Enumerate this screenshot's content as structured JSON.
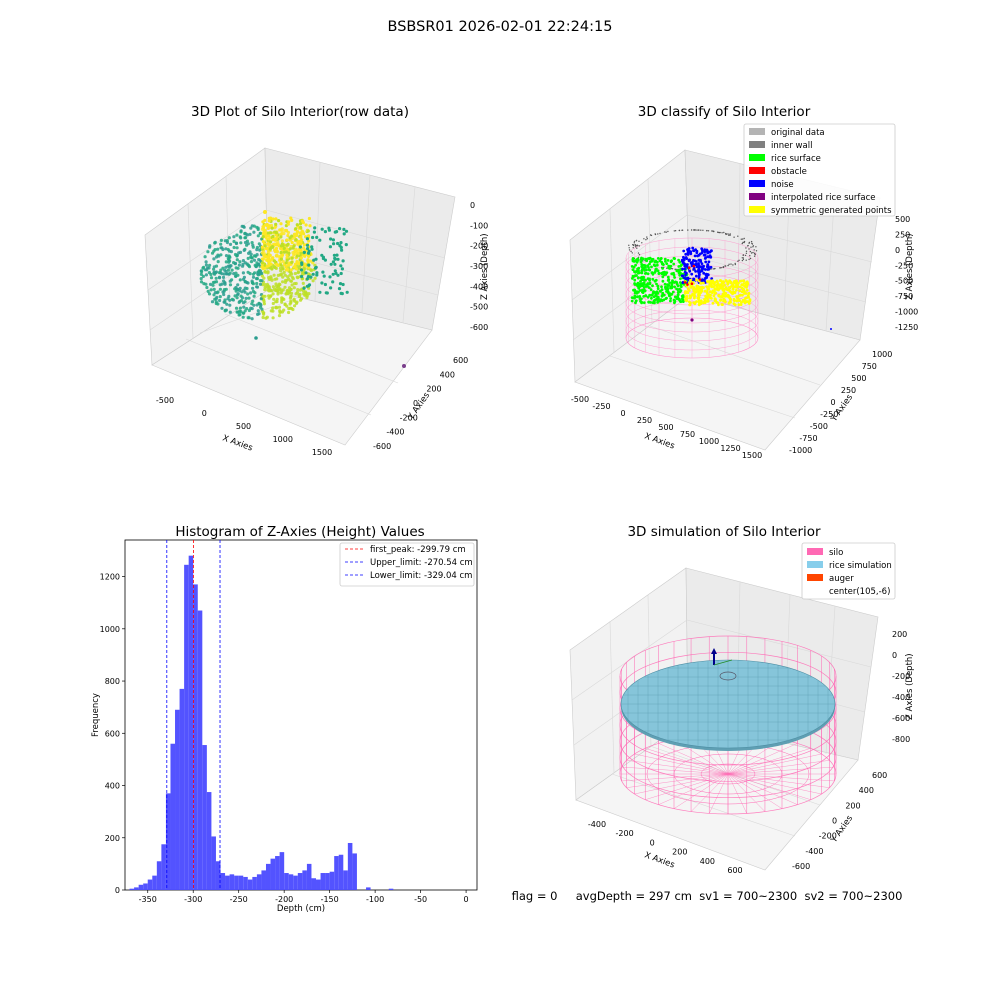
{
  "suptitle": "BSBSR01 2026-02-01 22:24:15",
  "panel_raw": {
    "title": "3D Plot of Silo Interior(row data)",
    "xlabel": "X Axies",
    "ylabel": "Y Axies",
    "zlabel": "Z Axies (Depth)",
    "xticks": [
      "-500",
      "0",
      "500",
      "1000",
      "1500"
    ],
    "yticks": [
      "600",
      "400",
      "200",
      "0",
      "-200",
      "-400",
      "-600"
    ],
    "zticks": [
      "0",
      "-100",
      "-200",
      "-300",
      "-400",
      "-500",
      "-600"
    ],
    "colormap": [
      "#2a9d8f",
      "#22a884",
      "#7ad151",
      "#bddf26",
      "#fde725"
    ]
  },
  "panel_classify": {
    "title": "3D classify of Silo Interior",
    "xlabel": "X Axies",
    "ylabel": "Y Axies",
    "zlabel": "Z Axies (Depth)",
    "xticks": [
      "-500",
      "-250",
      "0",
      "250",
      "500",
      "750",
      "1000",
      "1250",
      "1500"
    ],
    "yticks": [
      "1000",
      "750",
      "500",
      "250",
      "0",
      "-250",
      "-500",
      "-750",
      "-1000"
    ],
    "zticks": [
      "500",
      "250",
      "0",
      "-250",
      "-500",
      "-750",
      "-1000",
      "-1250"
    ],
    "legend": [
      {
        "label": "original data",
        "color": "#b4b4b4"
      },
      {
        "label": "inner wall",
        "color": "#808080"
      },
      {
        "label": "rice surface",
        "color": "#00ff00"
      },
      {
        "label": "obstacle",
        "color": "#ff0000"
      },
      {
        "label": "noise",
        "color": "#0000ff"
      },
      {
        "label": "interpolated rice surface",
        "color": "#800080"
      },
      {
        "label": "symmetric generated points",
        "color": "#ffff00"
      }
    ]
  },
  "panel_sim": {
    "title": "3D simulation of Silo Interior",
    "xlabel": "X Axies",
    "ylabel": "Y Axies",
    "zlabel": "Z Axies (Depth)",
    "xticks": [
      "-400",
      "-200",
      "0",
      "200",
      "400",
      "600"
    ],
    "yticks": [
      "600",
      "400",
      "200",
      "0",
      "-200",
      "-400",
      "-600"
    ],
    "zticks": [
      "200",
      "0",
      "-200",
      "-400",
      "-600",
      "-800"
    ],
    "legend": [
      {
        "label": "silo",
        "color": "#ff69b4"
      },
      {
        "label": "rice simulation",
        "color": "#87ceeb"
      },
      {
        "label": "auger",
        "color": "#ff4500"
      },
      {
        "label": "center(105,-6)",
        "color": "none"
      }
    ]
  },
  "status_line": "flag = 0     avgDepth = 297 cm  sv1 = 700~2300  sv2 = 700~2300",
  "chart_data": {
    "type": "bar",
    "title": "Histogram of Z-Axies (Height) Values",
    "xlabel": "Depth (cm)",
    "ylabel": "Frequency",
    "xlim": [
      -375,
      12
    ],
    "ylim": [
      0,
      1340
    ],
    "xticks": [
      -350,
      -300,
      -250,
      -200,
      -150,
      -100,
      -50,
      0
    ],
    "yticks": [
      0,
      200,
      400,
      600,
      800,
      1000,
      1200
    ],
    "bar_color": "#4a4aff",
    "bin_width": 5,
    "bin_starts": [
      -370,
      -365,
      -360,
      -355,
      -350,
      -345,
      -340,
      -335,
      -330,
      -325,
      -320,
      -315,
      -310,
      -305,
      -300,
      -295,
      -290,
      -285,
      -280,
      -275,
      -270,
      -265,
      -260,
      -255,
      -250,
      -245,
      -240,
      -235,
      -230,
      -225,
      -220,
      -215,
      -210,
      -205,
      -200,
      -195,
      -190,
      -185,
      -180,
      -175,
      -170,
      -165,
      -160,
      -155,
      -150,
      -145,
      -140,
      -135,
      -130,
      -125,
      -120,
      -115,
      -110,
      -105,
      -100,
      -95,
      -90,
      -85,
      -80,
      -75,
      -70,
      -65,
      -60,
      -55,
      -50,
      -45,
      -40,
      -35,
      -30,
      -25,
      -20,
      -15,
      -10,
      -5,
      0
    ],
    "counts": [
      5,
      10,
      20,
      25,
      40,
      55,
      110,
      175,
      370,
      560,
      690,
      770,
      1245,
      1280,
      1170,
      1070,
      555,
      375,
      205,
      110,
      65,
      55,
      60,
      55,
      55,
      50,
      40,
      50,
      60,
      75,
      100,
      120,
      130,
      145,
      65,
      60,
      55,
      65,
      75,
      100,
      45,
      40,
      65,
      65,
      70,
      130,
      135,
      75,
      180,
      140,
      0,
      0,
      10,
      0,
      0,
      0,
      0,
      5,
      0,
      0,
      0,
      0,
      0,
      0,
      0,
      0,
      0,
      0,
      0,
      0,
      0,
      0,
      0,
      0,
      0
    ],
    "vlines": [
      {
        "label": "first_peak: -299.79 cm",
        "x": -299.79,
        "color": "#ff0000"
      },
      {
        "label": "Upper_limit: -270.54 cm",
        "x": -270.54,
        "color": "#0000ff"
      },
      {
        "label": "Lower_limit: -329.04 cm",
        "x": -329.04,
        "color": "#0000ff"
      }
    ]
  }
}
